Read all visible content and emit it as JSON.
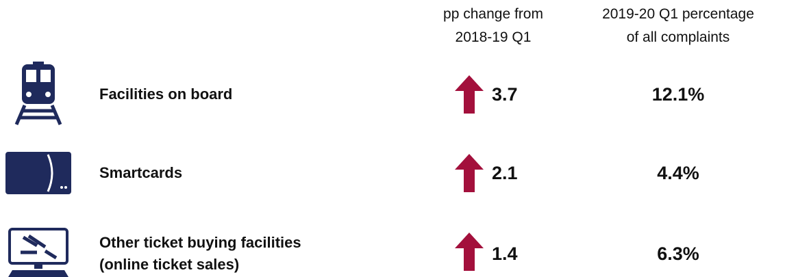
{
  "header": {
    "change": [
      "pp change from",
      "2018-19 Q1"
    ],
    "share": [
      "2019-20 Q1 percentage",
      "of all complaints"
    ]
  },
  "rows": [
    {
      "label": [
        "Facilities on board"
      ],
      "change": "3.7",
      "share": "12.1%"
    },
    {
      "label": [
        "Smartcards"
      ],
      "change": "2.1",
      "share": "4.4%"
    },
    {
      "label": [
        "Other ticket buying facilities",
        "(online ticket sales)"
      ],
      "change": "1.4",
      "share": "6.3%"
    }
  ]
}
